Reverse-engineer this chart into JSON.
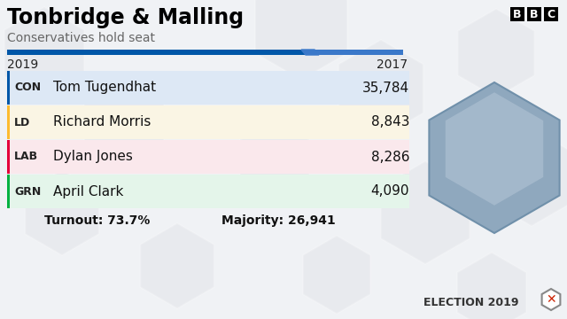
{
  "title": "Tonbridge & Malling",
  "subtitle": "Conservatives hold seat",
  "bg_color": "#f0f2f5",
  "title_color": "#000000",
  "subtitle_color": "#666666",
  "year_left": "2019",
  "year_right": "2017",
  "candidates": [
    {
      "party": "CON",
      "name": "Tom Tugendhat",
      "votes": "35,784",
      "party_color": "#0057a8",
      "bg_color": "#dde8f5"
    },
    {
      "party": "LD",
      "name": "Richard Morris",
      "votes": "8,843",
      "party_color": "#FDBB30",
      "bg_color": "#faf5e4"
    },
    {
      "party": "LAB",
      "name": "Dylan Jones",
      "votes": "8,286",
      "party_color": "#E4003B",
      "bg_color": "#fae8ec"
    },
    {
      "party": "GRN",
      "name": "April Clark",
      "votes": "4,090",
      "party_color": "#00B140",
      "bg_color": "#e4f5ea"
    }
  ],
  "turnout": "Turnout: 73.7%",
  "majority": "Majority: 26,941",
  "election_text": "ELECTION 2019"
}
